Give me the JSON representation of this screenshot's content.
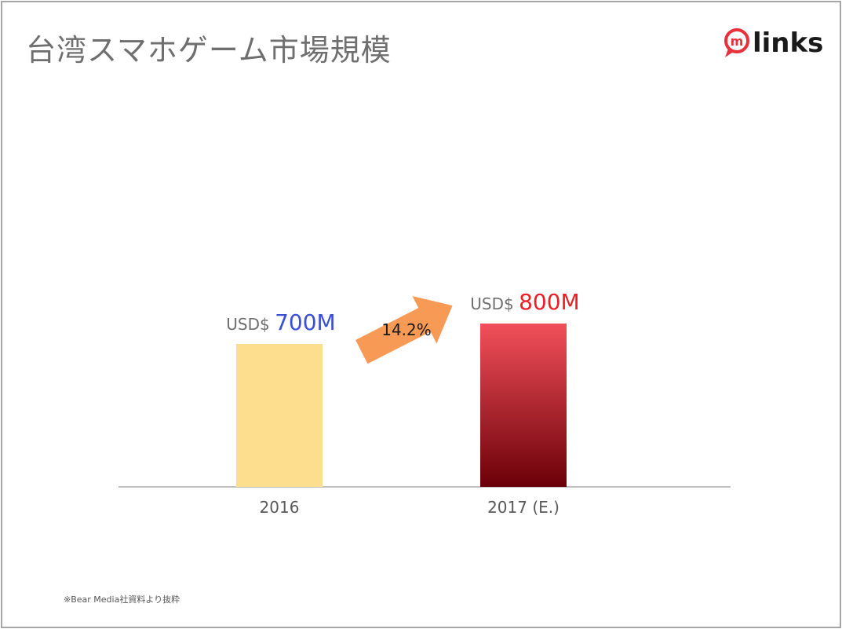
{
  "slide": {
    "title": "台湾スマホゲーム市場規模",
    "footnote": "※Bear Media社資料より抜粋"
  },
  "logo": {
    "text": "links",
    "icon": "speech-bubble-m-icon",
    "mark_letter": "m",
    "color": "#e8313a"
  },
  "colors": {
    "bar_2016": "#fddd8e",
    "bar_2017_top": "#f2505a",
    "bar_2017_bottom": "#6b0008",
    "arrow": "#f79a56",
    "label_2016_value": "#3a4fd6",
    "label_2017_value": "#ee1c25",
    "axis": "#bfbfbf",
    "label_prefix": "#6f6f6f"
  },
  "chart_data": {
    "type": "bar",
    "categories": [
      "2016",
      "2017 (E.)"
    ],
    "values": [
      700,
      800
    ],
    "unit": "USD$ M",
    "data_labels": [
      {
        "prefix": "USD$",
        "value": "700M"
      },
      {
        "prefix": "USD$",
        "value": "800M"
      }
    ],
    "growth_annotation": "14.2%",
    "ylim": [
      0,
      1000
    ],
    "grid": false
  }
}
